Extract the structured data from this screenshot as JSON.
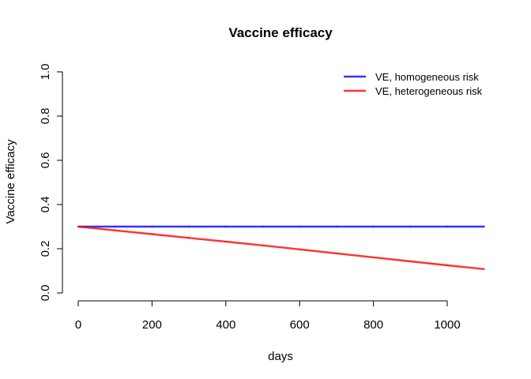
{
  "chart_data": {
    "type": "line",
    "title": "Vaccine efficacy",
    "xlabel": "days",
    "ylabel": "Vaccine efficacy",
    "xlim": [
      0,
      1100
    ],
    "ylim": [
      0.0,
      1.0
    ],
    "xticks": [
      0,
      200,
      400,
      600,
      800,
      1000
    ],
    "xtick_labels": [
      "0",
      "200",
      "400",
      "600",
      "800",
      "1000"
    ],
    "yticks": [
      0.0,
      0.2,
      0.4,
      0.6,
      0.8,
      1.0
    ],
    "ytick_labels": [
      "0.0",
      "0.2",
      "0.4",
      "0.6",
      "0.8",
      "1.0"
    ],
    "grid": false,
    "legend_position": "top-right",
    "x": [
      0,
      100,
      200,
      300,
      400,
      500,
      600,
      700,
      800,
      900,
      1000,
      1100
    ],
    "series": [
      {
        "name": "VE, homogeneous risk",
        "color": "#0000ff",
        "values": [
          0.3,
          0.3,
          0.3,
          0.3,
          0.3,
          0.3,
          0.3,
          0.3,
          0.3,
          0.3,
          0.3,
          0.3
        ]
      },
      {
        "name": "VE, heterogeneous risk",
        "color": "#ff0000",
        "values": [
          0.3,
          0.283,
          0.266,
          0.249,
          0.232,
          0.215,
          0.197,
          0.179,
          0.161,
          0.143,
          0.125,
          0.108
        ]
      }
    ]
  }
}
